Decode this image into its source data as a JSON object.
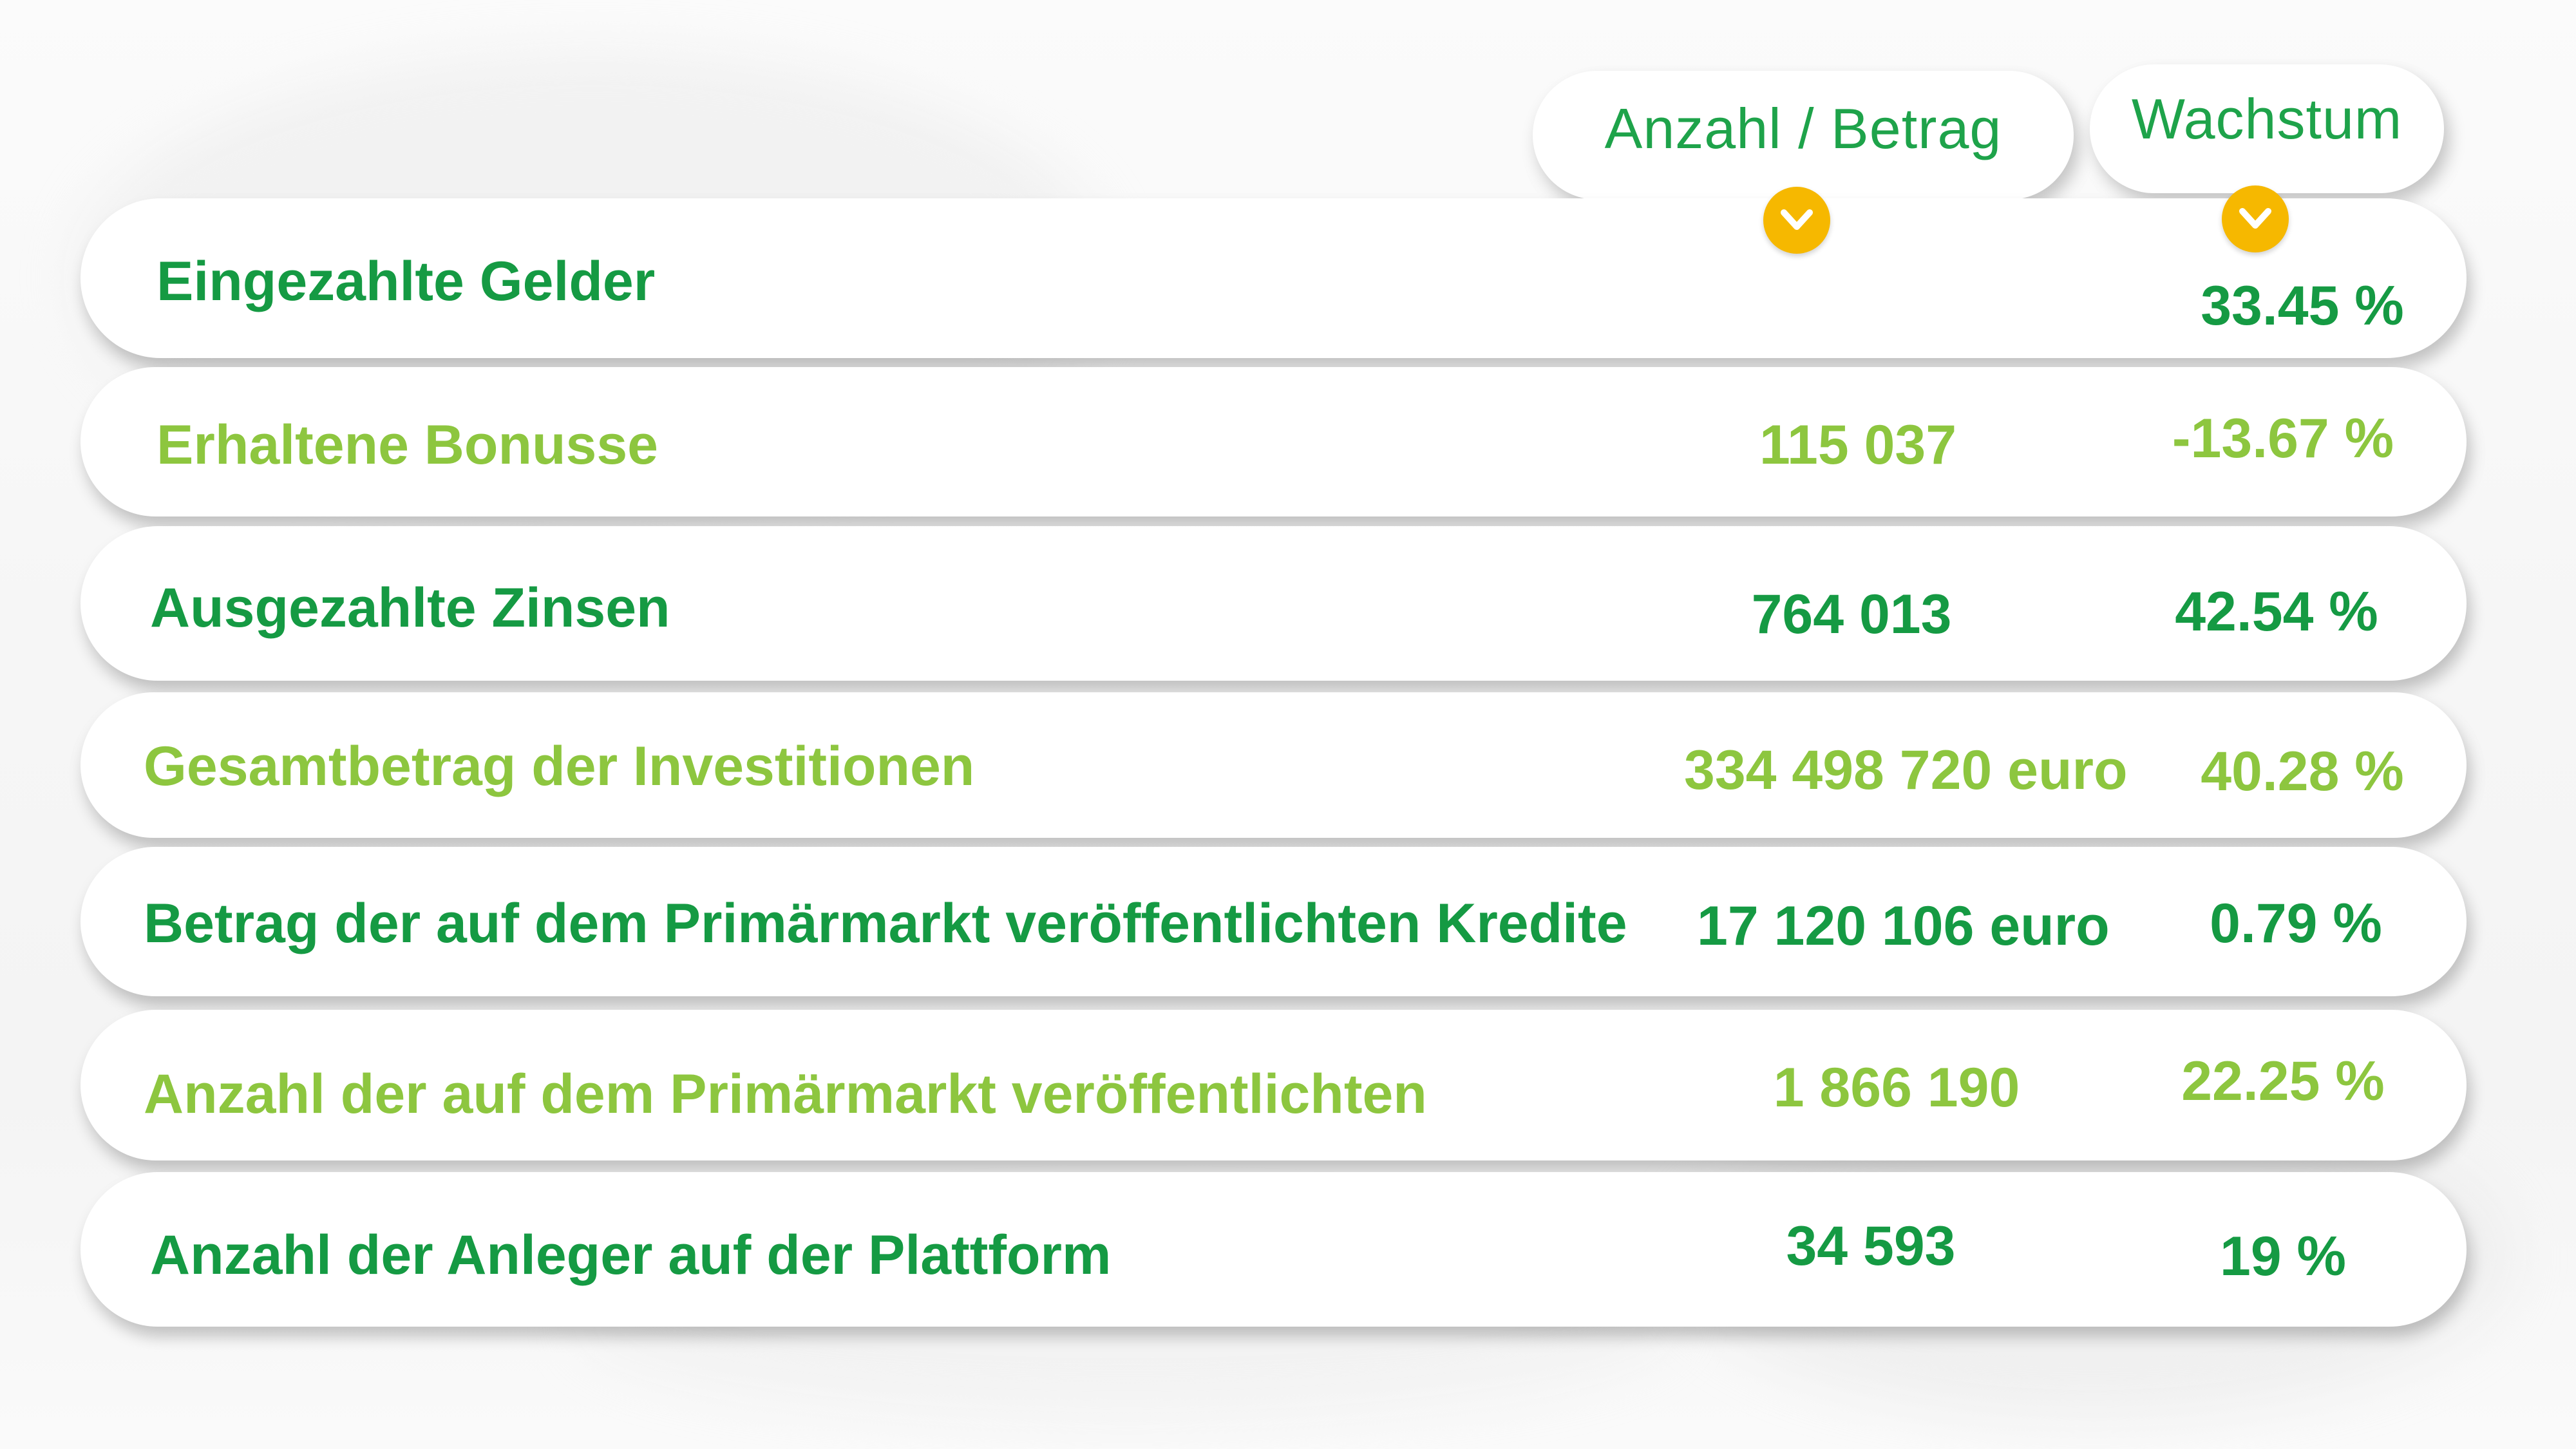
{
  "colors": {
    "dark_green": "#159a43",
    "light_green": "#8dc63f",
    "header_green": "#1ea34a",
    "accent_yellow": "#f6b800"
  },
  "header": {
    "count_label": "Anzahl / Betrag",
    "growth_label": "Wachstum",
    "count_icon": "chevron-down-icon",
    "growth_icon": "chevron-down-icon"
  },
  "rows": [
    {
      "label": "Eingezahlte Gelder",
      "value": "",
      "growth": "33.45 %",
      "tone": "dark"
    },
    {
      "label": "Erhaltene Bonusse",
      "value": "115 037",
      "growth": "-13.67 %",
      "tone": "light"
    },
    {
      "label": "Ausgezahlte Zinsen",
      "value": "764 013",
      "growth": "42.54 %",
      "tone": "dark"
    },
    {
      "label": "Gesamtbetrag der Investitionen",
      "value": "334 498 720 euro",
      "growth": "40.28 %",
      "tone": "light"
    },
    {
      "label": "Betrag der auf dem Primärmarkt veröffentlichten Kredite",
      "value": "17 120 106 euro",
      "growth": "0.79 %",
      "tone": "dark"
    },
    {
      "label": "Anzahl der auf dem Primärmarkt veröffentlichten",
      "value": "1 866 190",
      "growth": "22.25 %",
      "tone": "light"
    },
    {
      "label": "Anzahl der Anleger auf der Plattform",
      "value": "34 593",
      "growth": "19 %",
      "tone": "dark"
    }
  ]
}
